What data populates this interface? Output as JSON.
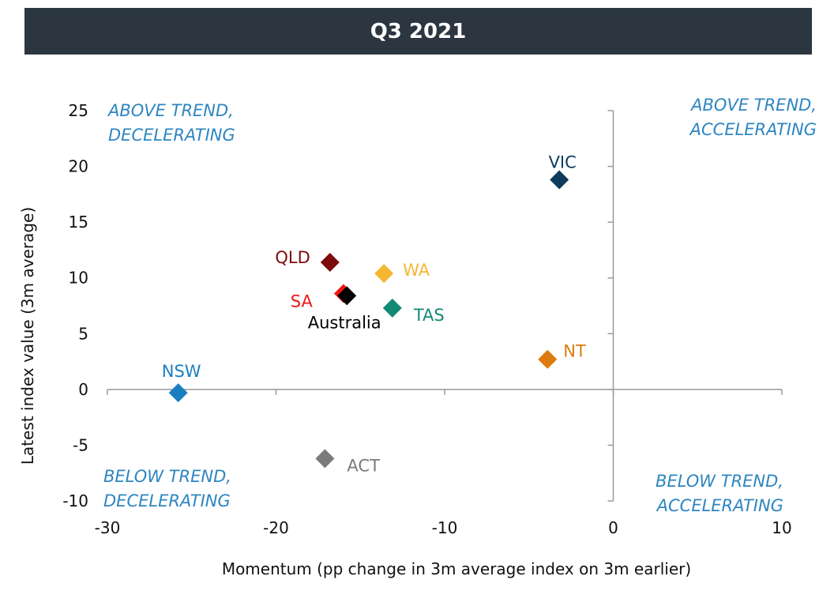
{
  "chart_data": {
    "type": "scatter",
    "title": "Q3 2021",
    "xlabel": "Momentum  (pp change in 3m average index on 3m earlier)",
    "ylabel": "Latest index value (3m average)",
    "xlim": [
      -30,
      10
    ],
    "ylim": [
      -10,
      25
    ],
    "x_ticks": [
      "-30",
      "-20",
      "-10",
      "0",
      "10"
    ],
    "y_ticks": [
      "25",
      "20",
      "15",
      "10",
      "5",
      "0",
      "-5",
      "-10"
    ],
    "quadrant_labels": {
      "top_left": [
        "ABOVE TREND,",
        "DECELERATING"
      ],
      "top_right": [
        "ABOVE TREND,",
        "ACCELERATING"
      ],
      "bottom_left": [
        "BELOW TREND,",
        "DECELERATING"
      ],
      "bottom_right": [
        "BELOW TREND,",
        "ACCELERATING"
      ]
    },
    "points": [
      {
        "label": "VIC",
        "x": -3.2,
        "y": 18.8,
        "color": "#0d3c5c"
      },
      {
        "label": "QLD",
        "x": -16.8,
        "y": 11.4,
        "color": "#7b0a0a"
      },
      {
        "label": "WA",
        "x": -13.6,
        "y": 10.4,
        "color": "#f5b731"
      },
      {
        "label": "SA",
        "x": -16.0,
        "y": 8.6,
        "color": "#f01414"
      },
      {
        "label": "Australia",
        "x": -15.8,
        "y": 8.4,
        "color": "#000000"
      },
      {
        "label": "TAS",
        "x": -13.1,
        "y": 7.3,
        "color": "#138a73"
      },
      {
        "label": "NT",
        "x": -3.9,
        "y": 2.7,
        "color": "#dd7b0d"
      },
      {
        "label": "NSW",
        "x": -25.8,
        "y": -0.3,
        "color": "#1a7fc1"
      },
      {
        "label": "ACT",
        "x": -17.1,
        "y": -6.2,
        "color": "#7a7a7a"
      }
    ]
  }
}
